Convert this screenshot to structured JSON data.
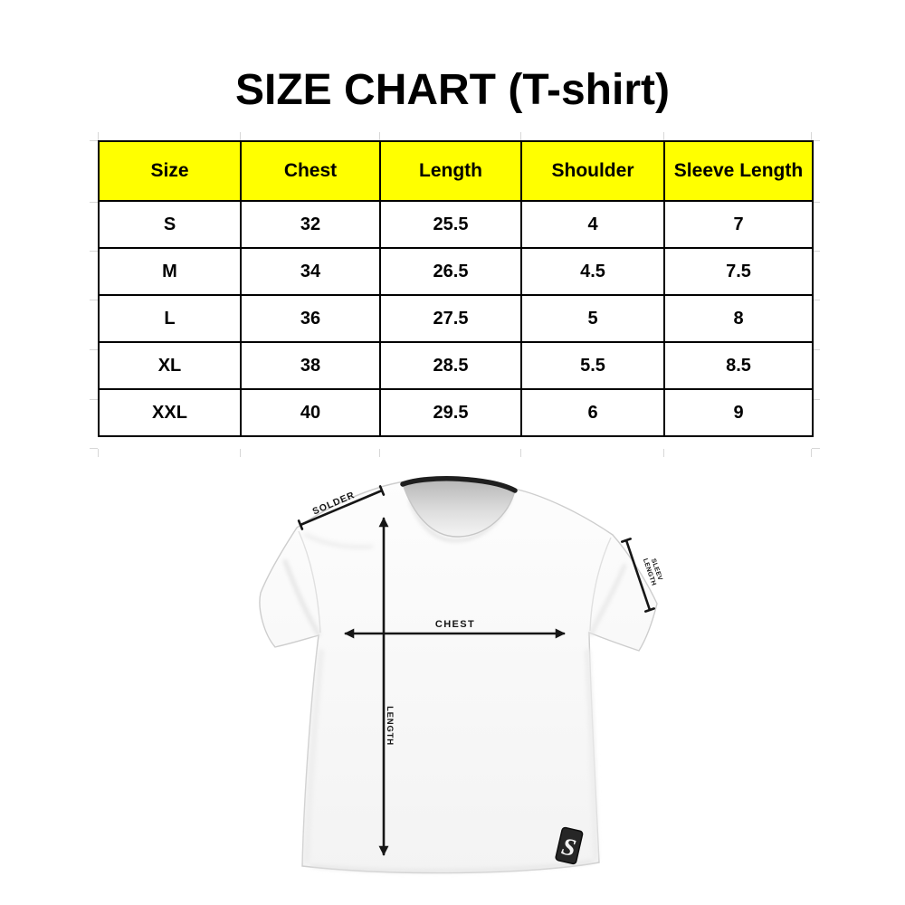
{
  "title": "SIZE CHART (T-shirt)",
  "chart_data": {
    "type": "table",
    "title": "SIZE CHART (T-shirt)",
    "columns": [
      "Size",
      "Chest",
      "Length",
      "Shoulder",
      "Sleeve Length"
    ],
    "rows": [
      [
        "S",
        "32",
        "25.5",
        "4",
        "7"
      ],
      [
        "M",
        "34",
        "26.5",
        "4.5",
        "7.5"
      ],
      [
        "L",
        "36",
        "27.5",
        "5",
        "8"
      ],
      [
        "XL",
        "38",
        "28.5",
        "5.5",
        "8.5"
      ],
      [
        "XXL",
        "40",
        "29.5",
        "6",
        "9"
      ]
    ]
  },
  "diagram": {
    "labels": {
      "shoulder": "SOLDER",
      "chest": "CHEST",
      "length": "LENGTH",
      "sleeve_line1": "SLEEV",
      "sleeve_line2": "LENGTH"
    },
    "brand_tag_glyph": "S"
  },
  "colors": {
    "page_bg": "#ffffff",
    "header_bg": "#ffff00",
    "ink": "#000000",
    "annotation": "#161616",
    "collar": "#1f1f1f"
  }
}
